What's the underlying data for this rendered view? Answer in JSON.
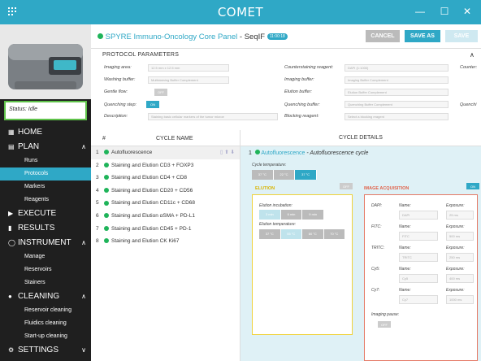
{
  "app": {
    "title": "COMET",
    "minimize": "—",
    "maximize": "☐",
    "close": "✕"
  },
  "status": {
    "label": "Status:",
    "value": "Idle"
  },
  "nav": [
    {
      "label": "HOME",
      "type": "main",
      "icon": "▦"
    },
    {
      "label": "PLAN",
      "type": "main",
      "icon": "▤",
      "chev": "∧"
    },
    {
      "label": "Runs",
      "type": "sub"
    },
    {
      "label": "Protocols",
      "type": "sub",
      "active": true
    },
    {
      "label": "Markers",
      "type": "sub"
    },
    {
      "label": "Reagents",
      "type": "sub"
    },
    {
      "label": "EXECUTE",
      "type": "main",
      "icon": "▶"
    },
    {
      "label": "RESULTS",
      "type": "main",
      "icon": "▮"
    },
    {
      "label": "INSTRUMENT",
      "type": "main",
      "icon": "◯",
      "chev": "∧"
    },
    {
      "label": "Manage",
      "type": "sub"
    },
    {
      "label": "Reservoirs",
      "type": "sub"
    },
    {
      "label": "Stainers",
      "type": "sub"
    },
    {
      "label": "CLEANING",
      "type": "main",
      "icon": "●",
      "chev": "∧"
    },
    {
      "label": "Reservoir cleaning",
      "type": "sub"
    },
    {
      "label": "Fluidics cleaning",
      "type": "sub"
    },
    {
      "label": "Start-up cleaning",
      "type": "sub"
    },
    {
      "label": "SETTINGS",
      "type": "main",
      "icon": "⚙",
      "chev": "∨"
    }
  ],
  "header": {
    "panel_name": "SPYRE Immuno-Oncology Core Panel",
    "panel_suffix": "- SeqIF",
    "badge": "11:00:18",
    "cancel": "CANCEL",
    "save_as": "SAVE AS",
    "save": "SAVE"
  },
  "protocol": {
    "title": "PROTOCOL PARAMETERS",
    "imaging_area": {
      "label": "Imaging area:",
      "value": "12.5 mm x 12.5 mm"
    },
    "washing_buffer": {
      "label": "Washing buffer:",
      "value": "Multistaining Buffer Complement"
    },
    "gentle_flow": {
      "label": "Gentle flow:",
      "value": "OFF"
    },
    "quenching_step": {
      "label": "Quenching step:",
      "value": "ON"
    },
    "description": {
      "label": "Description:",
      "value": "Staining basic cellular markers of the tumor microe"
    },
    "counterstaining": {
      "label": "Counterstaining reagent:",
      "value": "DAPI (1:1000)"
    },
    "imaging_buffer": {
      "label": "Imaging buffer:",
      "value": "Imaging Buffer Complement"
    },
    "elution_buffer": {
      "label": "Elution buffer:",
      "value": "Elution Buffer Complement"
    },
    "quenching_buffer": {
      "label": "Quenching buffer:",
      "value": "Quenching Buffer Complement"
    },
    "blocking_reagent": {
      "label": "Blocking reagent:",
      "value": "Select a blocking reagent"
    },
    "counter": "Counter:",
    "quench": "Quenchi"
  },
  "cycles": {
    "col_num": "#",
    "col_name": "CYCLE NAME",
    "items": [
      {
        "num": "1",
        "name": "Autofluorescence"
      },
      {
        "num": "2",
        "name": "Staining and Elution CD3 + FOXP3"
      },
      {
        "num": "3",
        "name": "Staining and Elution CD4 + CD8"
      },
      {
        "num": "4",
        "name": "Staining and Elution CD20 + CD56"
      },
      {
        "num": "5",
        "name": "Staining and Elution CD11c + CD68"
      },
      {
        "num": "6",
        "name": "Staining and Elution αSMA + PD-L1"
      },
      {
        "num": "7",
        "name": "Staining and Elution CD45 + PD-1"
      },
      {
        "num": "8",
        "name": "Staining and Elution CK Ki67"
      }
    ]
  },
  "details": {
    "title": "CYCLE DETAILS",
    "cycle_num": "1",
    "cycle_name": "Autofluorescence",
    "cycle_desc": "- Autofluorescence cycle",
    "cycle_temp_label": "Cycle temperature:",
    "cycle_temps": [
      "37 °C",
      "22 °C",
      "37 °C"
    ],
    "elution": {
      "title": "ELUTION",
      "toggle": "OFF",
      "incubation_label": "Elution incubation:",
      "incubations": [
        "3 min",
        "6 min",
        "9 min"
      ],
      "temp_label": "Elution temperature:",
      "temps": [
        "37 °C",
        "55 °C",
        "60 °C",
        "70 °C"
      ]
    },
    "imaging": {
      "title": "IMAGE ACQUISITION",
      "toggle": "ON",
      "channels": [
        {
          "ch": "DAPI:",
          "name_label": "Name:",
          "name": "DAPI",
          "exp_label": "Exposure:",
          "exp": "25 ms"
        },
        {
          "ch": "FITC:",
          "name_label": "Name:",
          "name": "FITC",
          "exp_label": "Exposure:",
          "exp": "500 ms"
        },
        {
          "ch": "TRITC:",
          "name_label": "Name:",
          "name": "TRITC",
          "exp_label": "Exposure:",
          "exp": "250 ms"
        },
        {
          "ch": "Cy5:",
          "name_label": "Name:",
          "name": "Cy5",
          "exp_label": "Exposure:",
          "exp": "400 ms"
        },
        {
          "ch": "Cy7:",
          "name_label": "Name:",
          "name": "Cy7",
          "exp_label": "Exposure:",
          "exp": "1000 ms"
        }
      ],
      "pause_label": "Imaging pause:",
      "pause": "OFF"
    }
  }
}
